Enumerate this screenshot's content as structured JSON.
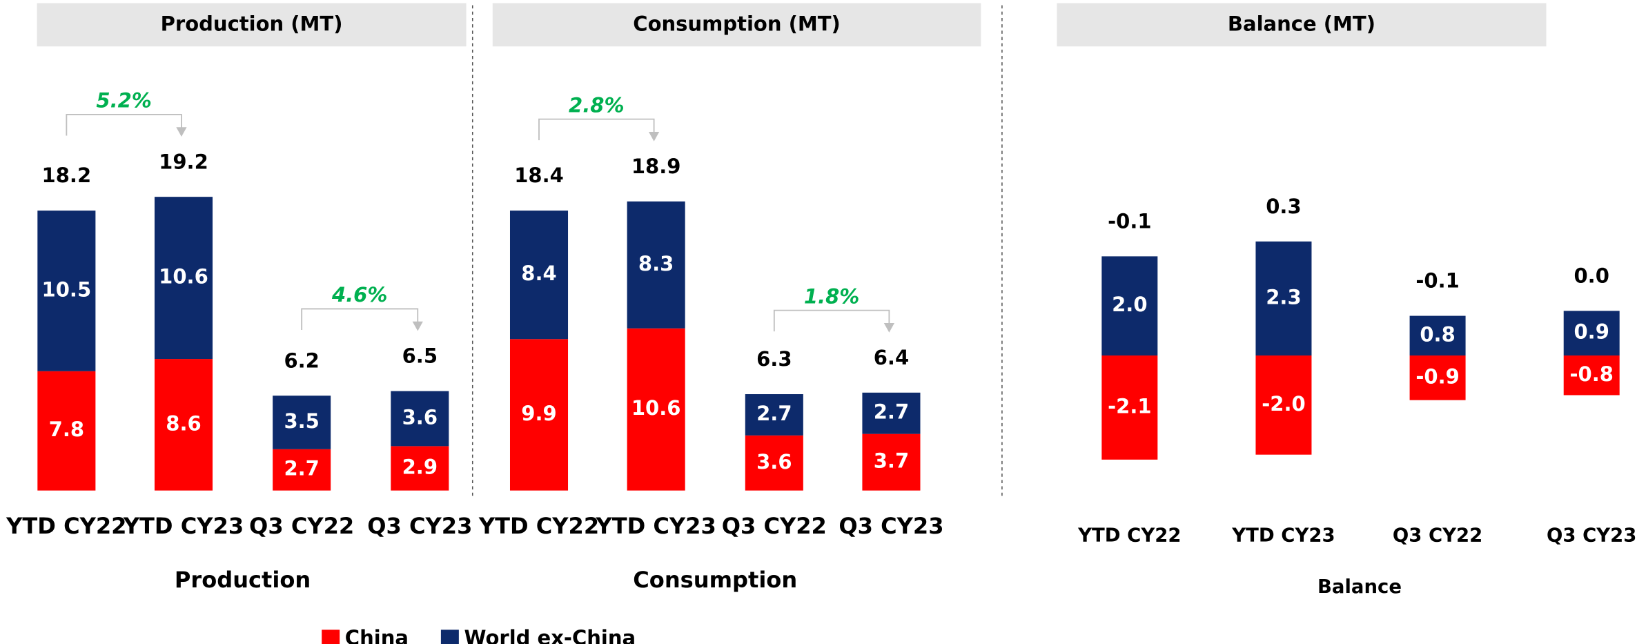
{
  "chart_data": [
    {
      "type": "stacked_bar",
      "title": "Production (MT)",
      "xlabel": "Production",
      "categories": [
        "YTD CY22",
        "YTD CY23",
        "Q3 CY22",
        "Q3 CY23"
      ],
      "series": [
        {
          "name": "China",
          "color": "#ff0000",
          "values": [
            7.8,
            8.6,
            2.7,
            2.9
          ]
        },
        {
          "name": "World ex-China",
          "color": "#0d2a6b",
          "values": [
            10.5,
            10.6,
            3.5,
            3.6
          ]
        }
      ],
      "totals": [
        18.2,
        19.2,
        6.2,
        6.5
      ],
      "annotations": [
        "5.2%",
        "4.6%"
      ]
    },
    {
      "type": "stacked_bar",
      "title": "Consumption (MT)",
      "xlabel": "Consumption",
      "categories": [
        "YTD CY22",
        "YTD CY23",
        "Q3 CY22",
        "Q3 CY23"
      ],
      "series": [
        {
          "name": "China",
          "color": "#ff0000",
          "values": [
            9.9,
            10.6,
            3.6,
            3.7
          ]
        },
        {
          "name": "World ex-China",
          "color": "#0d2a6b",
          "values": [
            8.4,
            8.3,
            2.7,
            2.7
          ]
        }
      ],
      "totals": [
        18.4,
        18.9,
        6.3,
        6.4
      ],
      "annotations": [
        "2.8%",
        "1.8%"
      ]
    },
    {
      "type": "stacked_bar",
      "title": "Balance (MT)",
      "xlabel": "Balance",
      "categories": [
        "YTD CY22",
        "YTD CY23",
        "Q3 CY22",
        "Q3 CY23"
      ],
      "series": [
        {
          "name": "China",
          "color": "#ff0000",
          "values": [
            -2.1,
            -2.0,
            -0.9,
            -0.8
          ],
          "value_labels": [
            "-2.1",
            "-2.0",
            "-0.9",
            "-0.8"
          ]
        },
        {
          "name": "World ex-China",
          "color": "#0d2a6b",
          "values": [
            2.0,
            2.3,
            0.8,
            0.9
          ],
          "value_labels": [
            "2.0",
            "2.3",
            "0.8",
            "0.9"
          ]
        }
      ],
      "totals": [
        -0.1,
        0.3,
        -0.1,
        0.0
      ],
      "total_labels": [
        "-0.1",
        "0.3",
        "-0.1",
        "0.0"
      ]
    }
  ]
}
